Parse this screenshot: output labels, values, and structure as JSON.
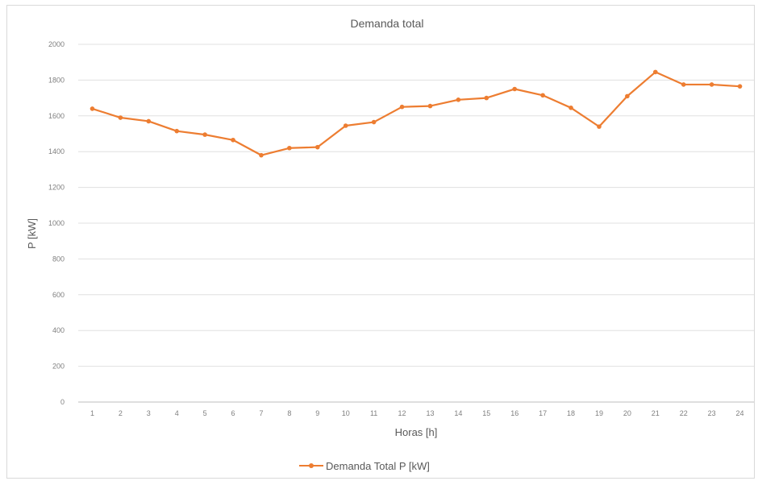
{
  "chart_data": {
    "type": "line",
    "title": "Demanda total",
    "xlabel": "Horas [h]",
    "ylabel": "P [kW]",
    "ylim": [
      0,
      2000
    ],
    "yticks": [
      "0",
      "200",
      "400",
      "600",
      "800",
      "1000",
      "1200",
      "1400",
      "1600",
      "1800",
      "2000"
    ],
    "categories": [
      "1",
      "2",
      "3",
      "4",
      "5",
      "6",
      "7",
      "8",
      "9",
      "10",
      "11",
      "12",
      "13",
      "14",
      "15",
      "16",
      "17",
      "18",
      "19",
      "20",
      "21",
      "22",
      "23",
      "24"
    ],
    "series": [
      {
        "name": "Demanda Total P [kW]",
        "color": "#ed7d31",
        "values": [
          1640,
          1590,
          1570,
          1515,
          1495,
          1465,
          1380,
          1420,
          1425,
          1545,
          1565,
          1650,
          1655,
          1690,
          1700,
          1750,
          1715,
          1645,
          1540,
          1710,
          1845,
          1775,
          1775,
          1765
        ]
      }
    ],
    "grid": true,
    "legend_position": "bottom"
  }
}
